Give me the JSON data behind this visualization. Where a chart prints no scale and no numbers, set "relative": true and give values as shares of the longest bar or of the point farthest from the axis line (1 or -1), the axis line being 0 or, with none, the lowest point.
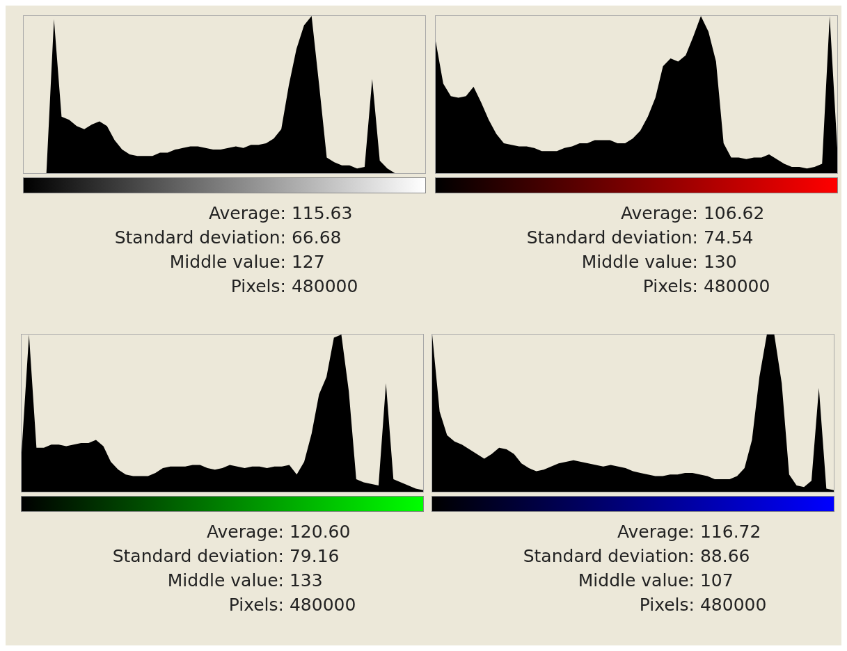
{
  "chart_data": [
    {
      "type": "area",
      "relative": true,
      "categories": [
        null,
        null,
        null,
        null,
        null,
        null,
        null,
        null,
        null,
        null,
        null,
        null,
        null,
        null,
        null,
        null,
        null,
        null,
        null,
        null,
        null,
        null,
        null,
        null,
        null,
        null,
        null,
        null,
        null,
        null,
        null,
        null,
        null,
        null,
        null,
        null,
        null,
        null,
        null,
        null,
        null,
        null,
        null,
        null,
        null,
        null,
        null,
        null,
        null,
        null,
        null,
        null,
        null,
        null
      ],
      "series": [
        {
          "color": "#000000",
          "values": [
            0,
            0,
            0,
            0,
            0.98,
            0.36,
            0.34,
            0.3,
            0.28,
            0.31,
            0.33,
            0.3,
            0.21,
            0.15,
            0.12,
            0.11,
            0.11,
            0.11,
            0.13,
            0.13,
            0.15,
            0.16,
            0.17,
            0.17,
            0.16,
            0.15,
            0.15,
            0.16,
            0.17,
            0.16,
            0.18,
            0.18,
            0.19,
            0.22,
            0.28,
            0.56,
            0.79,
            0.94,
            1,
            0.56,
            0.1,
            0.07,
            0.05,
            0.05,
            0.03,
            0.04,
            0.6,
            0.08,
            0.03,
            0,
            0,
            0,
            0,
            0
          ]
        }
      ],
      "annotations": [
        "Average: 115.63",
        "Standard deviation: 66.68",
        "Middle value: 127",
        "Pixels: 480000"
      ]
    },
    {
      "type": "area",
      "relative": true,
      "categories": [
        null,
        null,
        null,
        null,
        null,
        null,
        null,
        null,
        null,
        null,
        null,
        null,
        null,
        null,
        null,
        null,
        null,
        null,
        null,
        null,
        null,
        null,
        null,
        null,
        null,
        null,
        null,
        null,
        null,
        null,
        null,
        null,
        null,
        null,
        null,
        null,
        null,
        null,
        null,
        null,
        null,
        null,
        null,
        null,
        null,
        null,
        null,
        null,
        null,
        null,
        null,
        null,
        null,
        null
      ],
      "series": [
        {
          "color": "#000000",
          "values": [
            0.84,
            0.57,
            0.49,
            0.48,
            0.49,
            0.55,
            0.45,
            0.34,
            0.25,
            0.19,
            0.18,
            0.17,
            0.17,
            0.16,
            0.14,
            0.14,
            0.14,
            0.16,
            0.17,
            0.19,
            0.19,
            0.21,
            0.21,
            0.21,
            0.19,
            0.19,
            0.22,
            0.27,
            0.36,
            0.48,
            0.68,
            0.73,
            0.71,
            0.75,
            0.87,
            1,
            0.9,
            0.71,
            0.19,
            0.1,
            0.1,
            0.09,
            0.1,
            0.1,
            0.12,
            0.09,
            0.06,
            0.04,
            0.04,
            0.03,
            0.04,
            0.06,
            1,
            0.16
          ]
        }
      ],
      "annotations": [
        "Average: 106.62",
        "Standard deviation: 74.54",
        "Middle value: 130",
        "Pixels: 480000"
      ]
    },
    {
      "type": "area",
      "relative": true,
      "categories": [
        null,
        null,
        null,
        null,
        null,
        null,
        null,
        null,
        null,
        null,
        null,
        null,
        null,
        null,
        null,
        null,
        null,
        null,
        null,
        null,
        null,
        null,
        null,
        null,
        null,
        null,
        null,
        null,
        null,
        null,
        null,
        null,
        null,
        null,
        null,
        null,
        null,
        null,
        null,
        null,
        null,
        null,
        null,
        null,
        null,
        null,
        null,
        null,
        null,
        null,
        null,
        null,
        null,
        null,
        null
      ],
      "series": [
        {
          "color": "#000000",
          "values": [
            0.25,
            1,
            0.28,
            0.28,
            0.3,
            0.3,
            0.29,
            0.3,
            0.31,
            0.31,
            0.33,
            0.29,
            0.19,
            0.14,
            0.11,
            0.1,
            0.1,
            0.1,
            0.12,
            0.15,
            0.16,
            0.16,
            0.16,
            0.17,
            0.17,
            0.15,
            0.14,
            0.15,
            0.17,
            0.16,
            0.15,
            0.16,
            0.16,
            0.15,
            0.16,
            0.16,
            0.17,
            0.11,
            0.19,
            0.37,
            0.62,
            0.73,
            0.98,
            1,
            0.64,
            0.08,
            0.06,
            0.05,
            0.04,
            0.69,
            0.08,
            0.06,
            0.04,
            0.02,
            0.01
          ]
        }
      ],
      "annotations": [
        "Average: 120.60",
        "Standard deviation: 79.16",
        "Middle value: 133",
        "Pixels: 480000"
      ]
    },
    {
      "type": "area",
      "relative": true,
      "categories": [
        null,
        null,
        null,
        null,
        null,
        null,
        null,
        null,
        null,
        null,
        null,
        null,
        null,
        null,
        null,
        null,
        null,
        null,
        null,
        null,
        null,
        null,
        null,
        null,
        null,
        null,
        null,
        null,
        null,
        null,
        null,
        null,
        null,
        null,
        null,
        null,
        null,
        null,
        null,
        null,
        null,
        null,
        null,
        null,
        null,
        null,
        null,
        null,
        null,
        null,
        null,
        null,
        null,
        null,
        null
      ],
      "series": [
        {
          "color": "#000000",
          "values": [
            1,
            0.51,
            0.36,
            0.32,
            0.3,
            0.27,
            0.24,
            0.21,
            0.24,
            0.28,
            0.27,
            0.24,
            0.18,
            0.15,
            0.13,
            0.14,
            0.16,
            0.18,
            0.19,
            0.2,
            0.19,
            0.18,
            0.17,
            0.16,
            0.17,
            0.16,
            0.15,
            0.13,
            0.12,
            0.11,
            0.1,
            0.1,
            0.11,
            0.11,
            0.12,
            0.12,
            0.11,
            0.1,
            0.08,
            0.08,
            0.08,
            0.1,
            0.15,
            0.33,
            0.73,
            1,
            1,
            0.69,
            0.11,
            0.04,
            0.03,
            0.07,
            0.66,
            0.02,
            0.01
          ]
        }
      ],
      "annotations": [
        "Average: 116.72",
        "Standard deviation: 88.66",
        "Middle value: 107",
        "Pixels: 480000"
      ]
    }
  ]
}
